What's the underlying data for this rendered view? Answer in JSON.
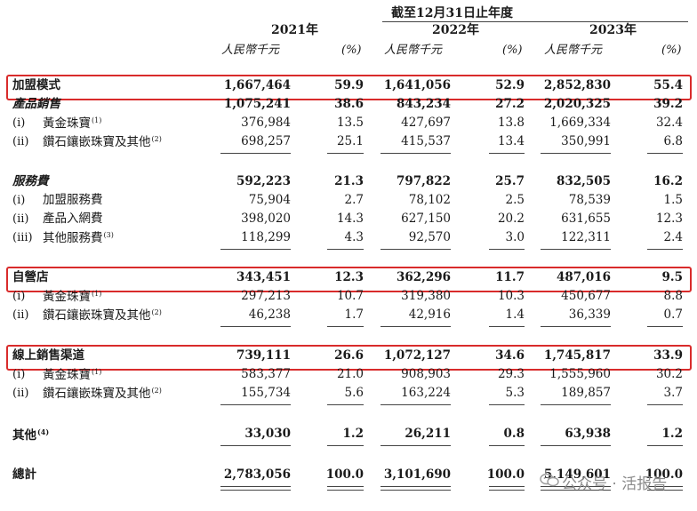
{
  "header": {
    "period": "截至12月31日止年度",
    "years": [
      "2021年",
      "2022年",
      "2023年"
    ],
    "unit_label": "人民幣千元",
    "pct_label": "(%)"
  },
  "rows": [
    {
      "label": "加盟模式",
      "style": "bold",
      "box": true,
      "values": [
        "1,667,464",
        "59.9",
        "1,641,056",
        "52.9",
        "2,852,830",
        "55.4"
      ]
    },
    {
      "label": "產品銷售",
      "style": "bolditalic",
      "values": [
        "1,075,241",
        "38.6",
        "843,234",
        "27.2",
        "2,020,325",
        "39.2"
      ]
    },
    {
      "idx": "(i)",
      "label": "黃金珠寶",
      "fn": "(1)",
      "values": [
        "376,984",
        "13.5",
        "427,697",
        "13.8",
        "1,669,334",
        "32.4"
      ]
    },
    {
      "idx": "(ii)",
      "label": "鑽石鑲嵌珠寶及其他",
      "fn": "(2)",
      "underline": true,
      "values": [
        "698,257",
        "25.1",
        "415,537",
        "13.4",
        "350,991",
        "6.8"
      ]
    },
    {
      "label": "服務費",
      "style": "bolditalic",
      "gap": true,
      "values": [
        "592,223",
        "21.3",
        "797,822",
        "25.7",
        "832,505",
        "16.2"
      ]
    },
    {
      "idx": "(i)",
      "label": "加盟服務費",
      "values": [
        "75,904",
        "2.7",
        "78,102",
        "2.5",
        "78,539",
        "1.5"
      ]
    },
    {
      "idx": "(ii)",
      "label": "產品入網費",
      "values": [
        "398,020",
        "14.3",
        "627,150",
        "20.2",
        "631,655",
        "12.3"
      ]
    },
    {
      "idx": "(iii)",
      "label": "其他服務費",
      "fn": "(3)",
      "underline": true,
      "values": [
        "118,299",
        "4.3",
        "92,570",
        "3.0",
        "122,311",
        "2.4"
      ]
    },
    {
      "label": "自營店",
      "style": "bold",
      "box": true,
      "gap": true,
      "values": [
        "343,451",
        "12.3",
        "362,296",
        "11.7",
        "487,016",
        "9.5"
      ]
    },
    {
      "idx": "(i)",
      "label": "黃金珠寶",
      "fn": "(1)",
      "values": [
        "297,213",
        "10.7",
        "319,380",
        "10.3",
        "450,677",
        "8.8"
      ]
    },
    {
      "idx": "(ii)",
      "label": "鑽石鑲嵌珠寶及其他",
      "fn": "(2)",
      "underline": true,
      "values": [
        "46,238",
        "1.7",
        "42,916",
        "1.4",
        "36,339",
        "0.7"
      ]
    },
    {
      "label": "線上銷售渠道",
      "style": "bold",
      "box": true,
      "gap": true,
      "values": [
        "739,111",
        "26.6",
        "1,072,127",
        "34.6",
        "1,745,817",
        "33.9"
      ]
    },
    {
      "idx": "(i)",
      "label": "黃金珠寶",
      "fn": "(1)",
      "values": [
        "583,377",
        "21.0",
        "908,903",
        "29.3",
        "1,555,960",
        "30.2"
      ]
    },
    {
      "idx": "(ii)",
      "label": "鑽石鑲嵌珠寶及其他",
      "fn": "(2)",
      "underline": true,
      "values": [
        "155,734",
        "5.6",
        "163,224",
        "5.3",
        "189,857",
        "3.7"
      ]
    },
    {
      "label": "其他",
      "fn": "(4)",
      "style": "bold",
      "gap": true,
      "underline": true,
      "values": [
        "33,030",
        "1.2",
        "26,211",
        "0.8",
        "63,938",
        "1.2"
      ]
    },
    {
      "label": "總計",
      "style": "bold",
      "total": true,
      "values": [
        "2,783,056",
        "100.0",
        "3,101,690",
        "100.0",
        "5,149,601",
        "100.0"
      ]
    }
  ],
  "watermark": {
    "text": "公众号 · 活报告",
    "icon": "wechat-icon",
    "color": "#8a8a8a"
  },
  "colors": {
    "highlight_box": "#d92b2b",
    "text": "#1a1a1a"
  }
}
